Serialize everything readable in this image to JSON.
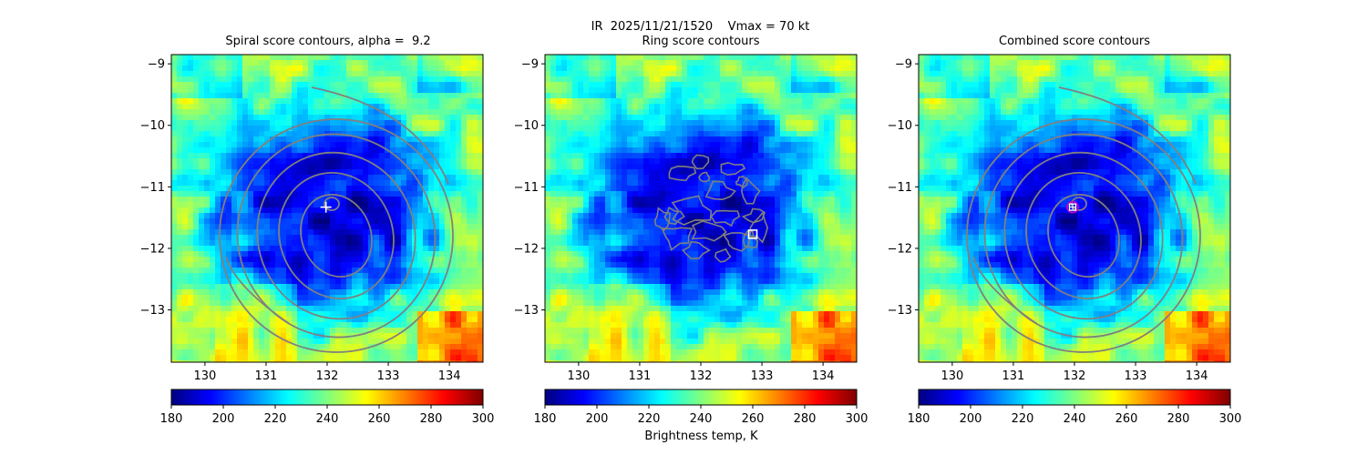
{
  "chart_data": {
    "suptitle": "IR  2025/11/21/1520    Vmax = 70 kt",
    "colorbar_label": "Brightness temp, K",
    "colormap": "jet_r",
    "clim": [
      180,
      300
    ],
    "colorbar_ticks": [
      "180",
      "200",
      "220",
      "240",
      "260",
      "280",
      "300"
    ],
    "storm_center": {
      "lon": 132.0,
      "lat": -11.35
    },
    "panels": [
      {
        "id": "spiral",
        "type": "heatmap",
        "title": "Spiral score contours, alpha =  9.2",
        "xlim": [
          129.45,
          134.55
        ],
        "ylim": [
          -13.85,
          -8.85
        ],
        "xticks": [
          130,
          131,
          132,
          133,
          134
        ],
        "yticks": [
          -9,
          -10,
          -11,
          -12,
          -13
        ],
        "xtick_labels": [
          "130",
          "131",
          "132",
          "133",
          "134"
        ],
        "ytick_labels": [
          "−9",
          "−10",
          "−11",
          "−12",
          "−13"
        ],
        "contour_color": "#808080",
        "contours": "concentric spiral-score ellipses",
        "marker": {
          "type": "cross",
          "lon": 131.98,
          "lat": -11.33,
          "color": "#ffffff"
        }
      },
      {
        "id": "ring",
        "type": "heatmap",
        "title": "Ring score contours",
        "xlim": [
          129.45,
          134.55
        ],
        "ylim": [
          -13.85,
          -8.85
        ],
        "xticks": [
          130,
          131,
          132,
          133,
          134
        ],
        "yticks": [
          -9,
          -10,
          -11,
          -12,
          -13
        ],
        "xtick_labels": [
          "130",
          "131",
          "132",
          "133",
          "134"
        ],
        "ytick_labels": [
          "−9",
          "−10",
          "−11",
          "−12",
          "−13"
        ],
        "contour_color": "#808080",
        "contours": "small irregular ring-score blobs",
        "marker": {
          "type": "square",
          "lon": 132.85,
          "lat": -11.77,
          "color": "#ffffff"
        }
      },
      {
        "id": "combined",
        "type": "heatmap",
        "title": "Combined score contours",
        "xlim": [
          129.45,
          134.55
        ],
        "ylim": [
          -13.85,
          -8.85
        ],
        "xticks": [
          130,
          131,
          132,
          133,
          134
        ],
        "yticks": [
          -9,
          -10,
          -11,
          -12,
          -13
        ],
        "xtick_labels": [
          "130",
          "131",
          "132",
          "133",
          "134"
        ],
        "ytick_labels": [
          "−9",
          "−10",
          "−11",
          "−12",
          "−13"
        ],
        "contour_color": "#808080",
        "contours": "concentric combined-score ellipses",
        "marker": {
          "type": "circle-square",
          "lon": 131.97,
          "lat": -11.33,
          "color": "#c000c0"
        }
      }
    ]
  }
}
